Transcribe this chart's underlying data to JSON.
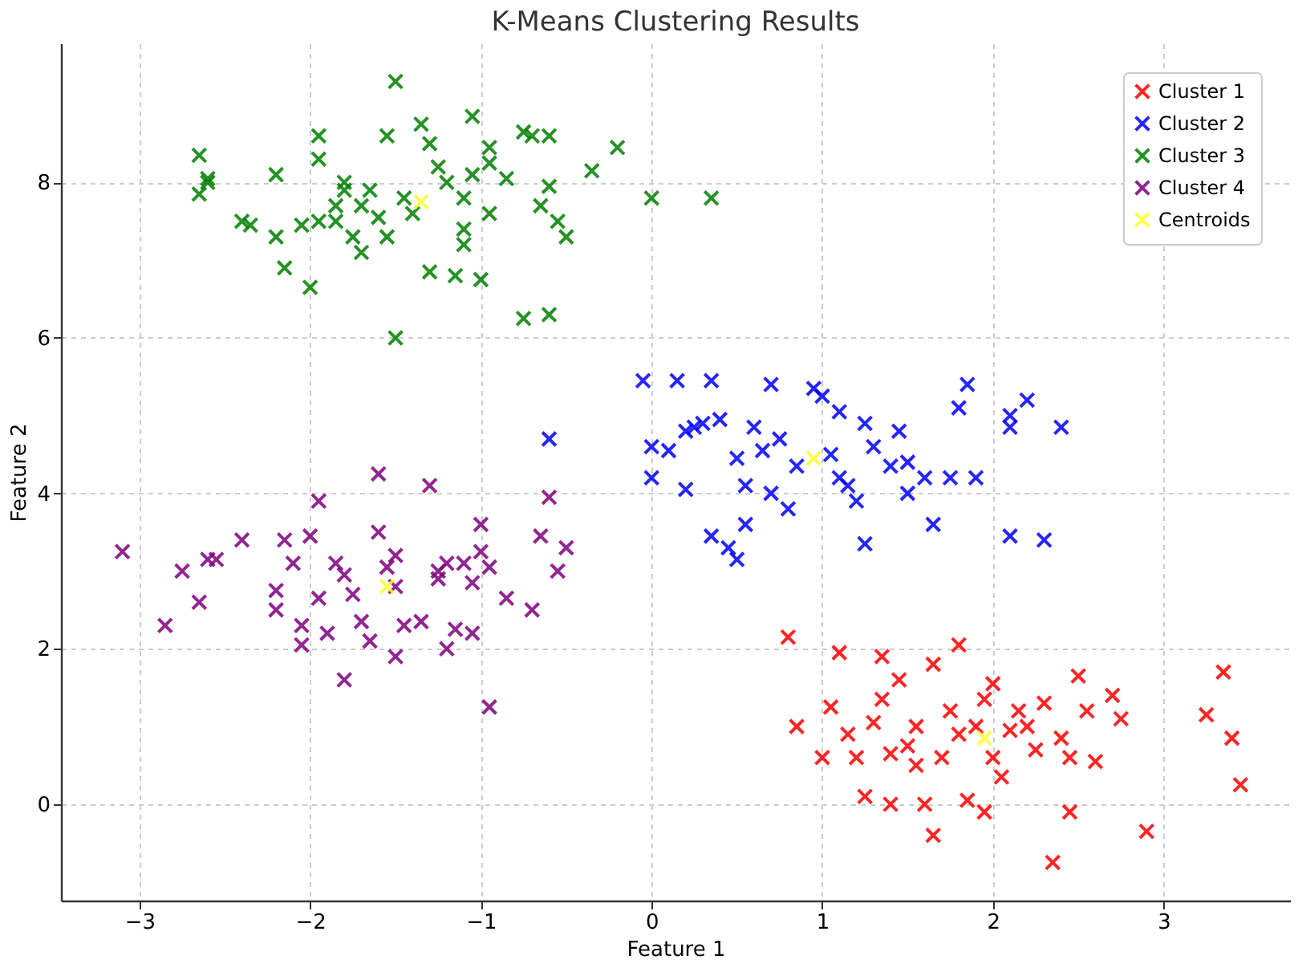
{
  "chart_data": {
    "type": "scatter",
    "title": "K-Means Clustering Results",
    "xlabel": "Feature 1",
    "ylabel": "Feature 2",
    "xlim": [
      -3.46,
      3.74
    ],
    "ylim": [
      -1.24,
      9.79
    ],
    "xticks": [
      -3,
      -2,
      -1,
      0,
      1,
      2,
      3
    ],
    "yticks": [
      0,
      2,
      4,
      6,
      8
    ],
    "grid": true,
    "legend": "top right",
    "marker": "cross",
    "series": [
      {
        "name": "Cluster 1",
        "color": "#ff0000",
        "x": [
          0.8,
          0.85,
          1.1,
          1.05,
          1.15,
          1.2,
          1.25,
          1.3,
          1.35,
          1.4,
          1.45,
          1.5,
          1.55,
          1.6,
          1.65,
          1.65,
          1.7,
          1.75,
          1.8,
          1.8,
          1.85,
          1.9,
          1.95,
          2.0,
          2.0,
          2.05,
          2.1,
          2.15,
          2.25,
          2.3,
          2.35,
          2.4,
          2.45,
          2.5,
          2.55,
          2.6,
          2.7,
          2.75,
          2.9,
          3.25,
          3.35,
          3.4,
          3.45,
          2.45,
          1.4,
          1.95,
          1.55,
          2.2,
          1.0,
          1.35
        ],
        "values": [
          2.15,
          1.0,
          1.95,
          1.25,
          0.9,
          0.6,
          0.1,
          1.05,
          1.35,
          0.65,
          1.6,
          0.75,
          0.5,
          0.0,
          1.8,
          -0.4,
          0.6,
          1.2,
          2.05,
          0.9,
          0.05,
          1.0,
          1.35,
          0.6,
          1.55,
          0.35,
          0.95,
          1.2,
          0.7,
          1.3,
          -0.75,
          0.85,
          0.6,
          1.65,
          1.2,
          0.55,
          1.4,
          1.1,
          -0.35,
          1.15,
          1.7,
          0.85,
          0.25,
          -0.1,
          0.0,
          -0.1,
          1.0,
          1.0,
          0.6,
          1.9
        ]
      },
      {
        "name": "Cluster 2",
        "color": "#0000ff",
        "x": [
          -0.6,
          -0.05,
          0.15,
          0.0,
          0.0,
          0.1,
          0.2,
          0.2,
          0.25,
          0.3,
          0.35,
          0.35,
          0.4,
          0.45,
          0.5,
          0.5,
          0.55,
          0.6,
          0.65,
          0.7,
          0.75,
          0.8,
          0.85,
          0.95,
          1.0,
          1.05,
          1.1,
          1.15,
          1.2,
          1.25,
          1.25,
          1.3,
          1.4,
          1.45,
          1.5,
          1.5,
          1.6,
          1.65,
          1.75,
          1.8,
          1.85,
          1.9,
          2.1,
          2.1,
          2.2,
          2.1,
          2.4,
          2.3,
          0.7,
          0.55,
          1.1
        ],
        "values": [
          4.7,
          5.45,
          5.45,
          4.6,
          4.2,
          4.55,
          4.05,
          4.8,
          4.85,
          4.9,
          5.45,
          3.45,
          4.95,
          3.3,
          3.15,
          4.45,
          4.1,
          4.85,
          4.55,
          4.0,
          4.7,
          3.8,
          4.35,
          5.35,
          5.25,
          4.5,
          5.05,
          4.1,
          3.9,
          3.35,
          4.9,
          4.6,
          4.35,
          4.8,
          4.0,
          4.4,
          4.2,
          3.6,
          4.2,
          5.1,
          5.4,
          4.2,
          5.0,
          3.45,
          5.2,
          4.85,
          4.85,
          3.4,
          5.4,
          3.6,
          4.2
        ]
      },
      {
        "name": "Cluster 3",
        "color": "#008000",
        "x": [
          -2.65,
          -2.6,
          -2.65,
          -2.6,
          -2.2,
          -2.4,
          -2.35,
          -2.2,
          -2.15,
          -2.0,
          -2.05,
          -1.95,
          -1.95,
          -1.95,
          -1.85,
          -1.8,
          -1.85,
          -1.75,
          -1.7,
          -1.65,
          -1.6,
          -1.55,
          -1.55,
          -1.5,
          -1.45,
          -1.4,
          -1.35,
          -1.3,
          -1.3,
          -1.25,
          -1.2,
          -1.15,
          -1.1,
          -1.1,
          -1.05,
          -1.05,
          -1.0,
          -0.95,
          -0.95,
          -0.85,
          -0.75,
          -0.7,
          -0.65,
          -0.6,
          -0.6,
          -0.55,
          -0.5,
          -0.35,
          -0.2,
          0.0,
          0.35,
          -0.75,
          -0.6,
          -1.5,
          -1.1,
          -0.95,
          -1.8,
          -1.7
        ],
        "values": [
          8.35,
          8.0,
          7.85,
          8.05,
          8.1,
          7.5,
          7.45,
          7.3,
          6.9,
          6.65,
          7.45,
          7.5,
          8.6,
          8.3,
          7.7,
          7.9,
          7.5,
          7.3,
          7.1,
          7.9,
          7.55,
          7.3,
          8.6,
          9.3,
          7.8,
          7.6,
          8.75,
          8.5,
          6.85,
          8.2,
          8.0,
          6.8,
          7.2,
          7.4,
          8.85,
          8.1,
          6.75,
          8.45,
          7.6,
          8.05,
          8.65,
          8.6,
          7.7,
          8.6,
          7.95,
          7.5,
          7.3,
          8.15,
          8.45,
          7.8,
          7.8,
          6.25,
          6.3,
          6.0,
          7.8,
          8.25,
          8.0,
          7.7
        ]
      },
      {
        "name": "Cluster 4",
        "color": "#800080",
        "x": [
          -3.1,
          -2.85,
          -2.75,
          -2.65,
          -2.6,
          -2.55,
          -2.4,
          -2.2,
          -2.2,
          -2.15,
          -2.1,
          -2.05,
          -2.0,
          -1.95,
          -1.95,
          -1.9,
          -1.85,
          -1.8,
          -1.75,
          -1.7,
          -1.65,
          -1.6,
          -1.6,
          -1.55,
          -1.5,
          -1.5,
          -1.45,
          -1.35,
          -1.3,
          -1.25,
          -1.2,
          -1.15,
          -1.1,
          -1.05,
          -1.0,
          -0.95,
          -0.95,
          -0.85,
          -0.7,
          -0.65,
          -0.6,
          -0.55,
          -0.5,
          -1.8,
          -1.5,
          -1.05,
          -2.05,
          -1.2,
          -1.0,
          -1.25
        ],
        "values": [
          3.25,
          2.3,
          3.0,
          2.6,
          3.15,
          3.15,
          3.4,
          2.75,
          2.5,
          3.4,
          3.1,
          2.05,
          3.45,
          3.9,
          2.65,
          2.2,
          3.1,
          2.95,
          2.7,
          2.35,
          2.1,
          3.5,
          4.25,
          3.05,
          2.8,
          3.2,
          2.3,
          2.35,
          4.1,
          3.0,
          3.1,
          2.25,
          3.1,
          2.85,
          3.25,
          3.05,
          1.25,
          2.65,
          2.5,
          3.45,
          3.95,
          3.0,
          3.3,
          1.6,
          1.9,
          2.2,
          2.3,
          2.0,
          3.6,
          2.9
        ]
      },
      {
        "name": "Centroids",
        "color": "#ffff33",
        "x": [
          1.95,
          0.95,
          -1.35,
          -1.55
        ],
        "values": [
          0.85,
          4.45,
          7.75,
          2.8
        ]
      }
    ]
  }
}
